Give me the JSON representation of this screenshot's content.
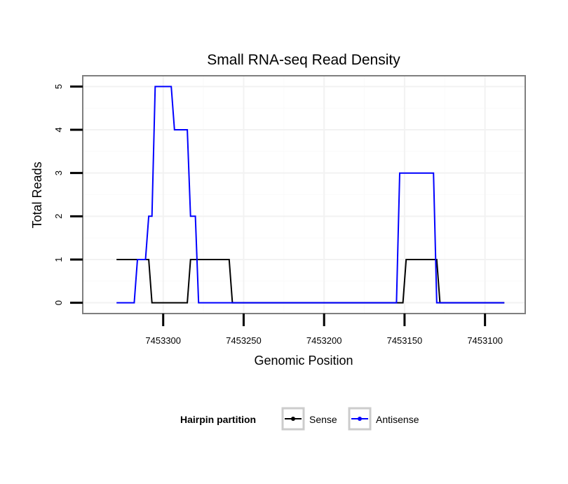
{
  "chart_data": {
    "type": "line",
    "title": "Small RNA-seq Read Density",
    "xlabel": "Genomic Position",
    "ylabel": "Total Reads",
    "x_reversed": true,
    "xlim": [
      7453075,
      7453350
    ],
    "ylim": [
      -0.25,
      5.25
    ],
    "xticks": [
      7453300,
      7453250,
      7453200,
      7453150,
      7453100
    ],
    "xtick_labels": [
      "7453300",
      "7453250",
      "7453200",
      "7453150",
      "7453100"
    ],
    "yticks": [
      0,
      1,
      2,
      3,
      4,
      5
    ],
    "ytick_labels": [
      "0",
      "1",
      "2",
      "3",
      "4",
      "5"
    ],
    "grid": true,
    "legend": {
      "title": "Hairpin partition",
      "position": "bottom",
      "entries": [
        "Sense",
        "Antisense"
      ]
    },
    "series": [
      {
        "name": "Sense",
        "color": "#000000",
        "x": [
          7453329,
          7453309,
          7453307,
          7453285,
          7453283,
          7453259,
          7453257,
          7453151,
          7453149,
          7453130,
          7453128,
          7453088
        ],
        "y": [
          1,
          1,
          0,
          0,
          1,
          1,
          0,
          0,
          1,
          1,
          0,
          0
        ]
      },
      {
        "name": "Antisense",
        "color": "#0000ff",
        "x": [
          7453329,
          7453318,
          7453316,
          7453311,
          7453309,
          7453307,
          7453305,
          7453295,
          7453293,
          7453285,
          7453283,
          7453280,
          7453278,
          7453257,
          7453155,
          7453153,
          7453132,
          7453130,
          7453088
        ],
        "y": [
          0,
          0,
          1,
          1,
          2,
          2,
          5,
          5,
          4,
          4,
          2,
          2,
          0,
          0,
          0,
          3,
          3,
          0,
          0
        ]
      }
    ]
  }
}
